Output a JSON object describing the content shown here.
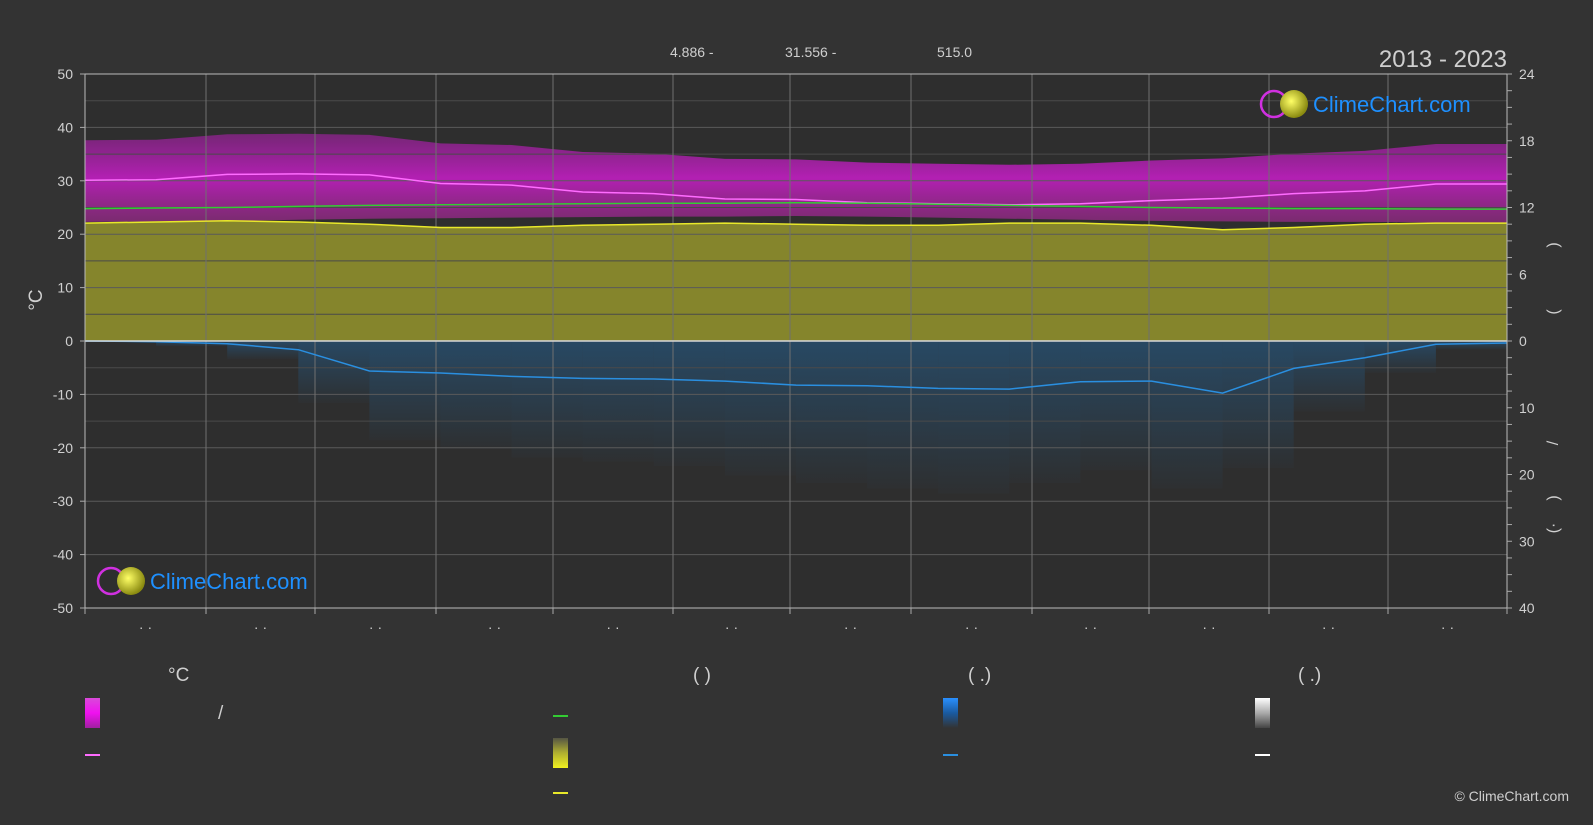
{
  "header": {
    "period": "2013 - 2023",
    "stat1": "4.886 -",
    "stat2": "31.556 -",
    "stat3": "515.0"
  },
  "chart_data": {
    "type": "area",
    "left_axis": {
      "label": "°C",
      "ticks": [
        "50",
        "40",
        "30",
        "20",
        "10",
        "0",
        "-10",
        "-20",
        "-30",
        "-40",
        "-50"
      ],
      "ylim": [
        -50,
        50
      ]
    },
    "right_axis_top": {
      "ticks": [
        "24",
        "18",
        "12",
        "6",
        "0"
      ],
      "ylim": [
        0,
        24
      ]
    },
    "right_axis_bottom": {
      "ticks": [
        "0",
        "10",
        "20",
        "30",
        "40"
      ],
      "ylim": [
        0,
        40
      ]
    },
    "right_axis_label_chars": [
      ")",
      "(",
      "/",
      ")",
      "(·"
    ],
    "x_tick_labels": [
      "· ·",
      "· ·",
      "· ·",
      "· ·",
      "· ·",
      "· ·",
      "· ·",
      "· ·",
      "· ·",
      "· ·",
      "· ·",
      "· ·"
    ],
    "grid": true,
    "series": [
      {
        "name": "",
        "color": "#ff6cff",
        "axis": "temperature",
        "values": [
          30.1,
          30.2,
          31.2,
          31.3,
          31.1,
          29.5,
          29.2,
          27.9,
          27.6,
          26.6,
          26.5,
          25.9,
          25.7,
          25.5,
          25.7,
          26.3,
          26.7,
          27.6,
          28.1,
          29.4,
          29.4
        ]
      },
      {
        "name": "",
        "color": "#33cc33",
        "axis": "temperature",
        "values": [
          24.8,
          24.9,
          25.0,
          25.2,
          25.4,
          25.5,
          25.6,
          25.7,
          25.8,
          25.8,
          25.9,
          25.8,
          25.6,
          25.4,
          25.2,
          25.0,
          24.9,
          24.8,
          24.8,
          24.7,
          24.7
        ]
      },
      {
        "name": "",
        "color": "#e8e82a",
        "axis": "sunshine",
        "values": [
          10.6,
          10.7,
          10.8,
          10.7,
          10.5,
          10.2,
          10.2,
          10.4,
          10.5,
          10.6,
          10.5,
          10.4,
          10.4,
          10.6,
          10.6,
          10.4,
          10.0,
          10.2,
          10.5,
          10.6,
          10.6
        ]
      },
      {
        "name": "",
        "color": "#2a8fe0",
        "axis": "precipitation",
        "values": [
          0.0,
          0.1,
          0.4,
          1.3,
          4.5,
          4.8,
          5.3,
          5.6,
          5.7,
          6.0,
          6.6,
          6.7,
          7.1,
          7.2,
          6.1,
          6.0,
          7.8,
          4.1,
          2.5,
          0.5,
          0.3
        ]
      }
    ],
    "band_colors": {
      "temperature_band": "#c21ec2",
      "sunshine_band": "#8a8a2a",
      "precipitation_bars": "#1a5a8a"
    }
  },
  "logo": {
    "text": "ClimeChart.com"
  },
  "legend": {
    "col1": {
      "heading": "°C",
      "slash": "/"
    },
    "col2": {
      "heading": "(           )"
    },
    "col3": {
      "heading": "(    .)"
    },
    "col4": {
      "heading": "(    .)"
    }
  },
  "copyright": "© ClimeChart.com"
}
